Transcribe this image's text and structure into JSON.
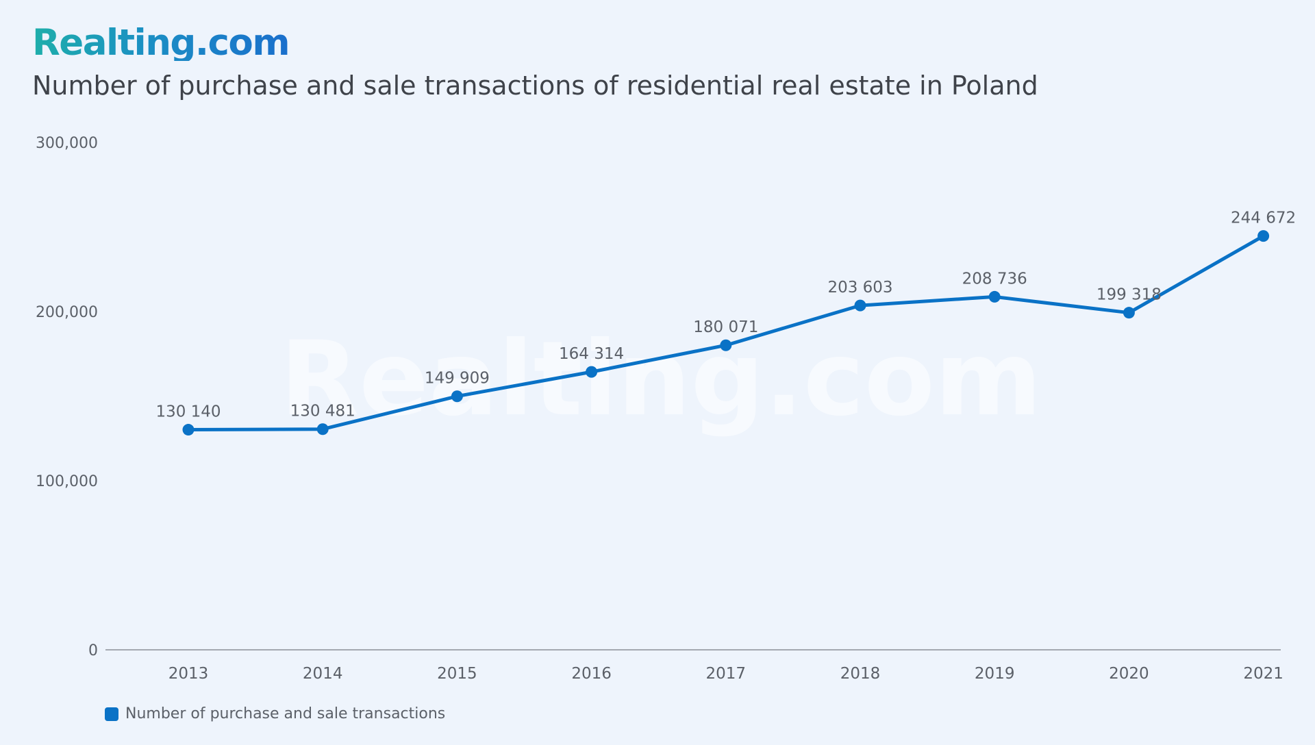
{
  "brand": "Realting.com",
  "chart_data": {
    "type": "line",
    "title": "Number of purchase and sale transactions of residential real estate in Poland",
    "watermark": "Realting.com",
    "categories": [
      "2013",
      "2014",
      "2015",
      "2016",
      "2017",
      "2018",
      "2019",
      "2020",
      "2021"
    ],
    "series": [
      {
        "name": "Number of purchase and sale transactions",
        "values": [
          130140,
          130481,
          149909,
          164314,
          180071,
          203603,
          208736,
          199318,
          244672
        ],
        "data_labels": [
          "130 140",
          "130 481",
          "149 909",
          "164 314",
          "180 071",
          "203 603",
          "208 736",
          "199 318",
          "244 672"
        ],
        "color": "#0a72c6"
      }
    ],
    "yticks": [
      0,
      100000,
      200000,
      300000
    ],
    "ytick_labels": [
      "0",
      "100,000",
      "200,000",
      "300,000"
    ],
    "ylim": [
      0,
      300000
    ],
    "grid": false,
    "legend": "bottom-left"
  }
}
